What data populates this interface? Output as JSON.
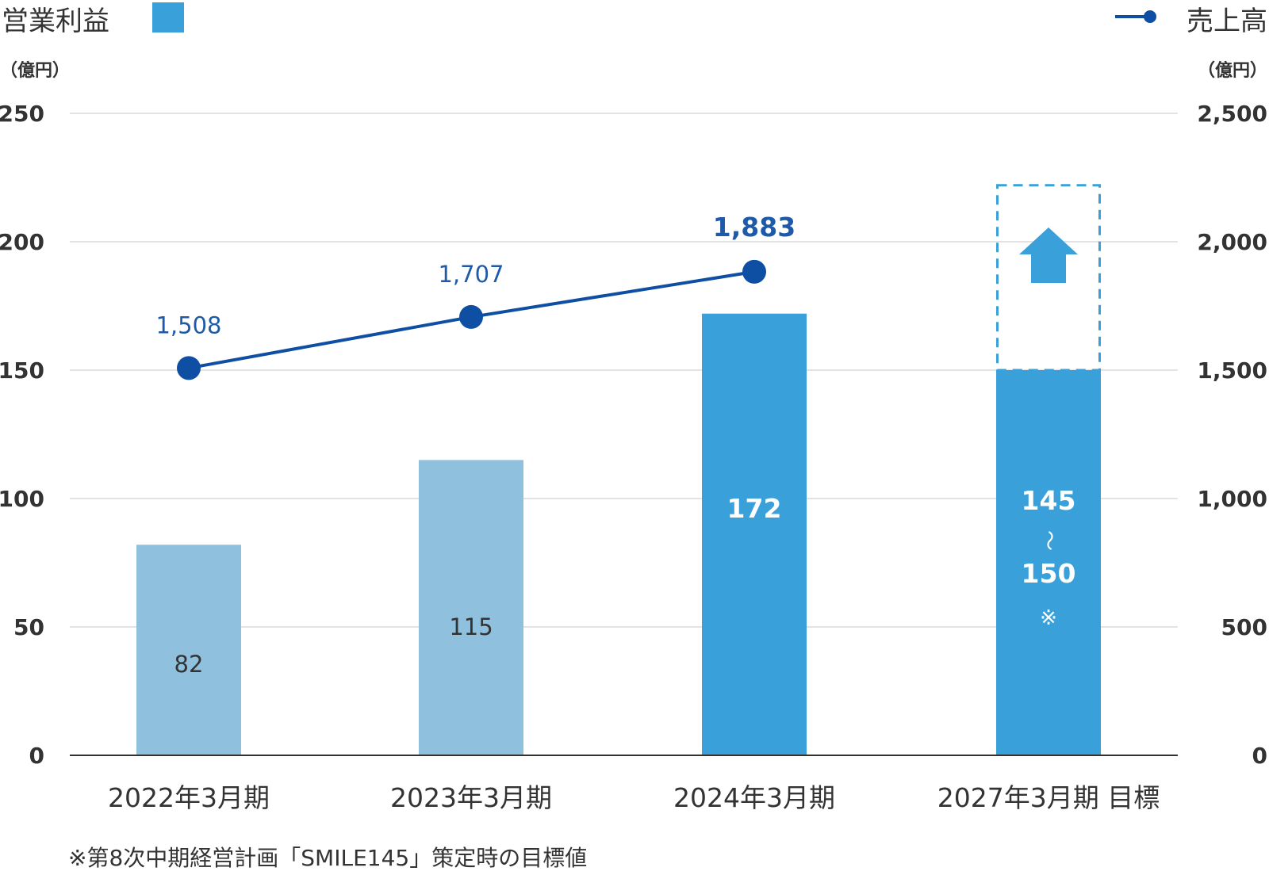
{
  "chart_data": {
    "type": "bar",
    "categories": [
      "2022年3月期",
      "2023年3月期",
      "2024年3月期",
      "2027年3月期 目標"
    ],
    "legend": {
      "bar_series": "営業利益",
      "line_series": "売上高"
    },
    "units": {
      "left": "（億円）",
      "right": "（億円）"
    },
    "left_axis": {
      "ylim": [
        0,
        250
      ],
      "ticks": [
        "0",
        "50",
        "100",
        "150",
        "200",
        "250"
      ]
    },
    "right_axis": {
      "ylim": [
        0,
        2500
      ],
      "ticks": [
        "0",
        "500",
        "1,000",
        "1,500",
        "2,000",
        "2,500"
      ]
    },
    "series": [
      {
        "name": "営業利益",
        "type": "bar",
        "axis": "left",
        "values": [
          82,
          115,
          172,
          150
        ],
        "labels": [
          "82",
          "115",
          "172",
          "145\n〜\n150\n※"
        ],
        "target_range": [
          145,
          150
        ],
        "target_upside_to": 222
      },
      {
        "name": "売上高",
        "type": "line",
        "axis": "right",
        "values": [
          1508,
          1707,
          1883,
          null
        ],
        "labels": [
          "1,508",
          "1,707",
          "1,883",
          ""
        ]
      }
    ],
    "colors": {
      "bar_light": "#8fc1df",
      "bar_strong": "#3aa0da",
      "line": "#0e4fa3",
      "grid": "#e3e3e3",
      "axis": "#333333"
    },
    "grid": true,
    "legend_placement": "top"
  },
  "footnote": "※第8次中期経営計画「SMILE145」策定時の目標値"
}
